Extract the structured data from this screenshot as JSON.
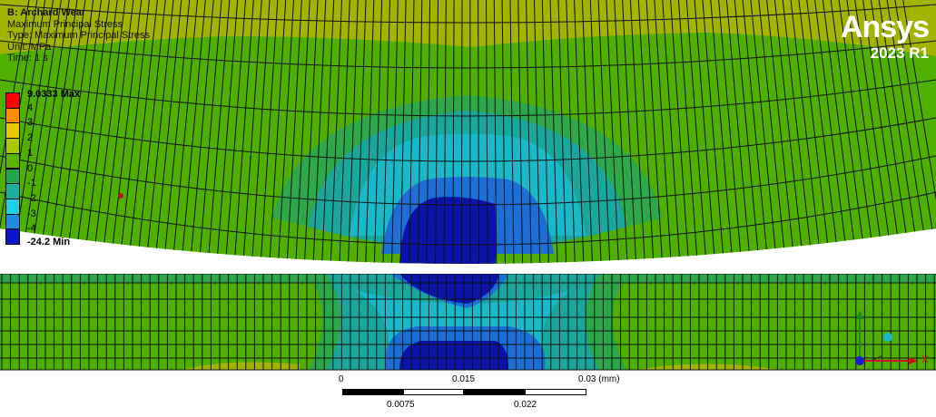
{
  "header": {
    "title": "B: Archard Wear",
    "result": "Maximum Principal Stress",
    "type": "Type: Maximum Principal Stress",
    "unit": "Unit: MPa",
    "time": "Time: 1 s"
  },
  "legend": {
    "max_label": "9.0333 Max",
    "min_label": "-24.2 Min",
    "bands": [
      {
        "label": "4",
        "color": "#ff0000"
      },
      {
        "label": "3",
        "color": "#ff8c00"
      },
      {
        "label": "2",
        "color": "#e8c800"
      },
      {
        "label": "1",
        "color": "#a8c800"
      },
      {
        "label": "0",
        "color": "#5ab400"
      },
      {
        "label": "-1",
        "color": "#1ea84a"
      },
      {
        "label": "-2",
        "color": "#1ab0a0"
      },
      {
        "label": "-3",
        "color": "#1ad2e6"
      },
      {
        "label": "-4",
        "color": "#1a8ce6"
      },
      {
        "label": "",
        "color": "#0a14c8"
      }
    ]
  },
  "logo": {
    "brand": "Ansys",
    "version": "2023 R1"
  },
  "scale_bar": {
    "top_labels": [
      "0",
      "0.015",
      "0.03 (mm)"
    ],
    "bottom_labels": [
      "0.0075",
      "0.022"
    ]
  },
  "colors": {
    "upper_zone": "#a2b400",
    "green": "#4fb000",
    "light_green": "#2aa84a",
    "teal": "#17a79c",
    "cyan": "#18b9c9",
    "mid_blue": "#1a6fd8",
    "deep_blue": "#0a14a8",
    "mesh_line": "#101010"
  }
}
